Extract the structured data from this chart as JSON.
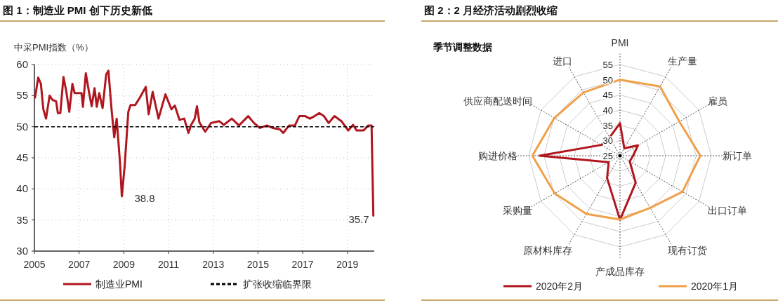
{
  "chart_data": [
    {
      "type": "line",
      "title": "图 1：制造业 PMI 创下历史新低",
      "ylabel": "中采PMI指数（%）",
      "x": [
        2005.03,
        2005.17,
        2005.29,
        2005.4,
        2005.52,
        2005.68,
        2005.81,
        2005.97,
        2006.05,
        2006.16,
        2006.3,
        2006.42,
        2006.56,
        2006.7,
        2006.8,
        2007.11,
        2007.17,
        2007.3,
        2007.43,
        2007.56,
        2007.69,
        2007.79,
        2007.9,
        2008.05,
        2008.21,
        2008.31,
        2008.45,
        2008.57,
        2008.68,
        2008.83,
        2008.91,
        2009.04,
        2009.2,
        2009.3,
        2009.51,
        2009.72,
        2009.98,
        2010.11,
        2010.29,
        2010.55,
        2010.86,
        2011.13,
        2011.28,
        2011.49,
        2011.7,
        2011.89,
        2012.01,
        2012.17,
        2012.27,
        2012.38,
        2012.64,
        2012.9,
        2013.26,
        2013.47,
        2013.83,
        2014.15,
        2014.56,
        2014.82,
        2015.08,
        2015.4,
        2015.66,
        2015.97,
        2016.13,
        2016.39,
        2016.65,
        2016.85,
        2017.11,
        2017.32,
        2017.53,
        2017.74,
        2017.95,
        2018.16,
        2018.42,
        2018.73,
        2019.04,
        2019.25,
        2019.41,
        2019.72,
        2019.93,
        2020.08,
        2020.16
      ],
      "series": [
        {
          "name": "制造业PMI",
          "color": "#b0161e",
          "values": [
            54.7,
            57.9,
            56.9,
            52.8,
            51.3,
            55.0,
            54.3,
            54.1,
            52.2,
            52.2,
            58.0,
            55.8,
            52.4,
            56.9,
            55.4,
            55.4,
            53.2,
            58.6,
            55.8,
            53.3,
            56.2,
            53.2,
            55.4,
            53.0,
            58.4,
            59.0,
            52.8,
            48.3,
            51.3,
            44.1,
            38.8,
            43.8,
            52.4,
            53.5,
            53.5,
            54.7,
            56.4,
            52.0,
            55.6,
            51.3,
            55.2,
            52.8,
            53.4,
            51.1,
            51.3,
            49.0,
            50.3,
            51.3,
            53.3,
            50.7,
            49.2,
            50.6,
            50.9,
            50.3,
            51.3,
            50.2,
            51.7,
            50.6,
            49.8,
            50.2,
            49.8,
            49.6,
            49.0,
            50.2,
            50.2,
            51.7,
            51.7,
            51.3,
            51.7,
            52.2,
            51.7,
            50.6,
            51.7,
            50.9,
            49.4,
            50.3,
            49.4,
            49.4,
            50.2,
            50.2,
            35.7
          ]
        }
      ],
      "xlim": [
        2005,
        2020.2
      ],
      "xticks": [
        2005,
        2007,
        2009,
        2011,
        2013,
        2015,
        2017,
        2019
      ],
      "ylim": [
        30,
        60
      ],
      "yticks": [
        30,
        35,
        40,
        45,
        50,
        55,
        60
      ],
      "grid": true,
      "ref_lines": [
        {
          "axis": "y",
          "value": 50,
          "label": "扩张收缩临界限",
          "color": "#000000",
          "line_style": "dashed"
        }
      ],
      "annotations": [
        {
          "text": "38.8",
          "x": 2008.91,
          "y": 38.8
        },
        {
          "text": "35.7",
          "x": 2020.16,
          "y": 35.7
        }
      ],
      "legend": "bottom"
    },
    {
      "type": "radar",
      "title": "图 2：2 月经济活动剧烈收缩",
      "subtitle": "季节调整数据",
      "categories": [
        "PMI",
        "生产量",
        "雇员",
        "新订单",
        "出口订单",
        "现有订货",
        "产成品库存",
        "原材料库存",
        "采购量",
        "购进价格",
        "供应商配送时间",
        "进口"
      ],
      "series": [
        {
          "name": "2020年2月",
          "color": "#b0161e",
          "values": [
            35.7,
            27.8,
            31.8,
            29.3,
            28.7,
            35.3,
            46.1,
            33.5,
            29.3,
            51.4,
            32.1,
            31.9
          ]
        },
        {
          "name": "2020年1月",
          "color": "#f0a048",
          "values": [
            50.0,
            51.3,
            47.5,
            51.4,
            48.7,
            44.8,
            46.0,
            47.1,
            49.8,
            53.8,
            49.9,
            49.0
          ]
        }
      ],
      "ylim": [
        25,
        55
      ],
      "yticks": [
        25,
        30,
        35,
        40,
        45,
        50,
        55
      ],
      "grid": true,
      "legend": "bottom"
    }
  ]
}
